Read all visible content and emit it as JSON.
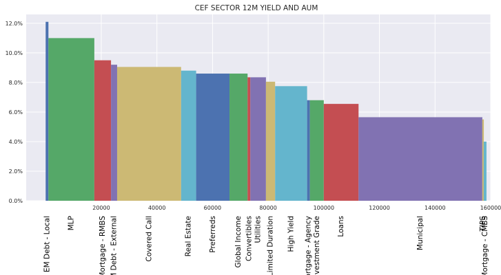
{
  "chart_data": {
    "type": "bar",
    "title": "CEF SECTOR 12M YIELD AND AUM",
    "xlabel": "",
    "ylabel": "",
    "xlim": [
      -7000,
      160000
    ],
    "ylim": [
      0,
      12.6
    ],
    "grid": true,
    "x_ticks": [
      {
        "value": 20000,
        "label": "20000"
      },
      {
        "value": 40000,
        "label": "40000"
      },
      {
        "value": 60000,
        "label": "60000"
      },
      {
        "value": 80000,
        "label": "80000"
      },
      {
        "value": 100000,
        "label": "100000"
      },
      {
        "value": 120000,
        "label": "120000"
      },
      {
        "value": 140000,
        "label": "140000"
      },
      {
        "value": 160000,
        "label": "160000"
      }
    ],
    "y_ticks": [
      {
        "value": 0,
        "label": "0.0%"
      },
      {
        "value": 2,
        "label": "2.0%"
      },
      {
        "value": 4,
        "label": "4.0%"
      },
      {
        "value": 6,
        "label": "6.0%"
      },
      {
        "value": 8,
        "label": "8.0%"
      },
      {
        "value": 10,
        "label": "10.0%"
      },
      {
        "value": 12,
        "label": "12.0%"
      }
    ],
    "bars": [
      {
        "label": "EM Debt - Local",
        "aum": 1000,
        "yield": 12.1,
        "color": "#4c72b0"
      },
      {
        "label": "MLP",
        "aum": 16500,
        "yield": 11.0,
        "color": "#55a868"
      },
      {
        "label": "Mortgage - RMBS",
        "aum": 6000,
        "yield": 9.5,
        "color": "#c44e52"
      },
      {
        "label": "EM Debt - External",
        "aum": 2200,
        "yield": 9.2,
        "color": "#8172b2"
      },
      {
        "label": "Covered Call",
        "aum": 23000,
        "yield": 9.05,
        "color": "#ccb974"
      },
      {
        "label": "Real Estate",
        "aum": 5400,
        "yield": 8.8,
        "color": "#64b5cd"
      },
      {
        "label": "Preferreds",
        "aum": 12000,
        "yield": 8.6,
        "color": "#4c72b0"
      },
      {
        "label": "Global Income",
        "aum": 6500,
        "yield": 8.6,
        "color": "#55a868"
      },
      {
        "label": "Convertibles",
        "aum": 1000,
        "yield": 8.35,
        "color": "#c44e52"
      },
      {
        "label": "Utilities",
        "aum": 5600,
        "yield": 8.35,
        "color": "#8172b2"
      },
      {
        "label": "Limited Duration",
        "aum": 3300,
        "yield": 8.05,
        "color": "#ccb974"
      },
      {
        "label": "High Yield",
        "aum": 11500,
        "yield": 7.75,
        "color": "#64b5cd"
      },
      {
        "label": "Mortgage - Agency",
        "aum": 1000,
        "yield": 6.8,
        "color": "#4c72b0"
      },
      {
        "label": "Investment Grade",
        "aum": 5000,
        "yield": 6.8,
        "color": "#55a868"
      },
      {
        "label": "Loans",
        "aum": 12500,
        "yield": 6.55,
        "color": "#c44e52"
      },
      {
        "label": "Municipal",
        "aum": 44500,
        "yield": 5.65,
        "color": "#8172b2"
      },
      {
        "label": "TIPS",
        "aum": 500,
        "yield": 5.5,
        "color": "#ccb974"
      },
      {
        "label": "Mortgage - CMBS",
        "aum": 1000,
        "yield": 4.0,
        "color": "#64b5cd"
      }
    ]
  }
}
